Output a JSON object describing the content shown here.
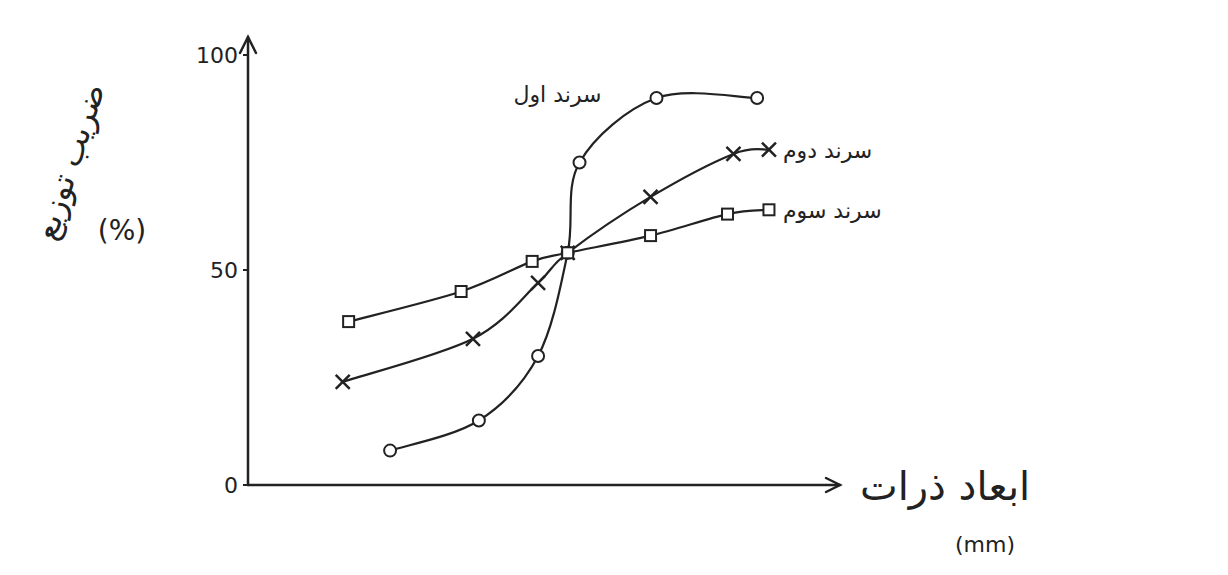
{
  "chart_data": {
    "type": "line",
    "ylabel": "ضریب توزیع",
    "ylabel_unit": "(%)",
    "xlabel": "ابعاد ذرات",
    "xlabel_unit": "(mm)",
    "xlim": [
      0,
      10
    ],
    "ylim": [
      0,
      100
    ],
    "yticks": [
      0,
      50,
      100
    ],
    "tick_labels": "y",
    "grid": false,
    "series": [
      {
        "name": "سرند اول",
        "color": "#222222",
        "marker": "circle",
        "x": [
          2.4,
          3.9,
          4.9,
          5.4,
          5.6,
          6.9,
          8.6
        ],
        "values": [
          8,
          15,
          30,
          54,
          75,
          90,
          90
        ]
      },
      {
        "name": "سرند دوم",
        "color": "#222222",
        "marker": "x",
        "x": [
          1.6,
          3.8,
          4.9,
          5.4,
          6.8,
          8.2,
          8.8
        ],
        "values": [
          24,
          34,
          47,
          54,
          67,
          77,
          78
        ]
      },
      {
        "name": "سرند سوم",
        "color": "#222222",
        "marker": "square",
        "x": [
          1.7,
          3.6,
          4.8,
          5.4,
          6.8,
          8.1,
          8.8
        ],
        "values": [
          38,
          45,
          52,
          54,
          58,
          63,
          64
        ]
      }
    ]
  }
}
